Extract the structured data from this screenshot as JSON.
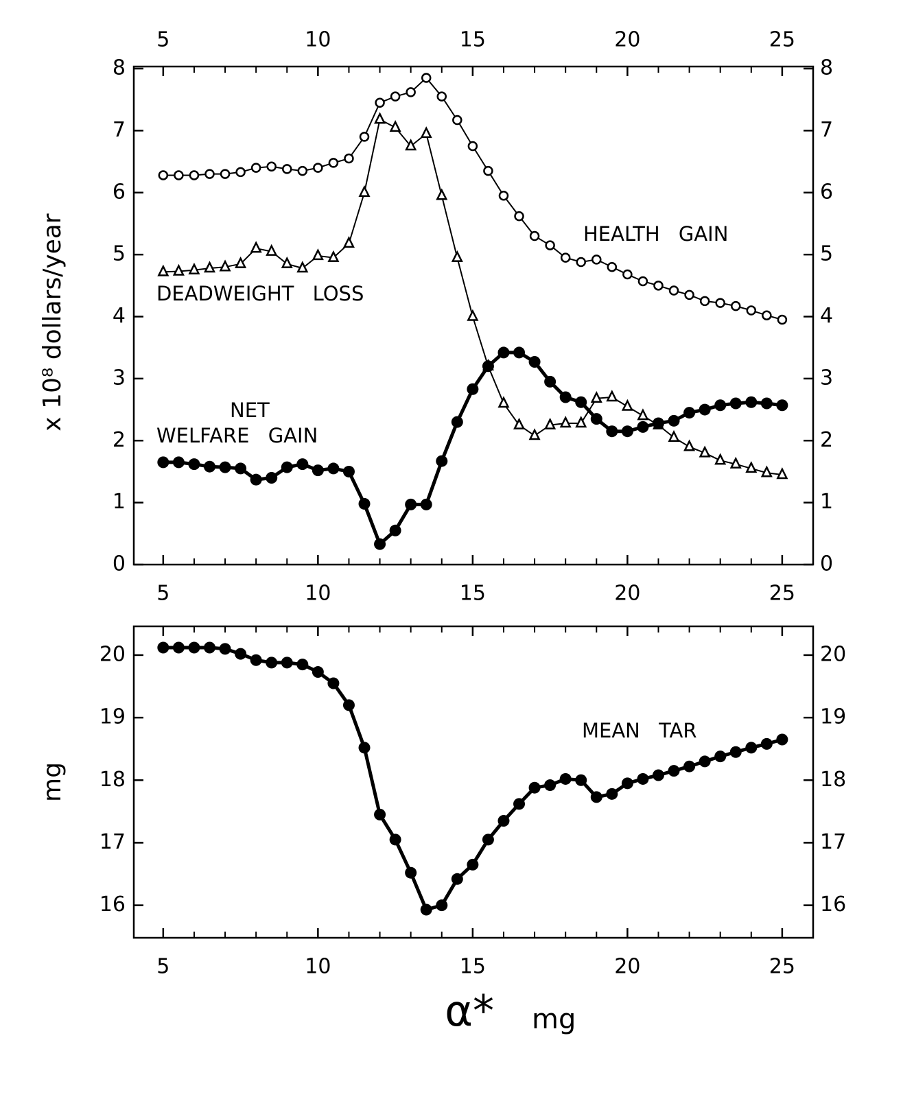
{
  "chart_data": [
    {
      "type": "line",
      "ylabel": "x 10⁸ dollars/year",
      "xlim": [
        4.05,
        26
      ],
      "xticks": [
        5,
        10,
        15,
        20,
        25
      ],
      "xminorticks": [
        6,
        7,
        8,
        9,
        11,
        12,
        13,
        14,
        16,
        17,
        18,
        19,
        21,
        22,
        23,
        24
      ],
      "xtick_labels": [
        "top",
        "bottom"
      ],
      "ylim": [
        0,
        8
      ],
      "yticks": [
        0,
        1,
        2,
        3,
        4,
        5,
        6,
        7,
        8
      ],
      "annotations": [
        "HEALTH GAIN",
        "DEADWEIGHT LOSS",
        "NET",
        "WELFARE GAIN"
      ],
      "x": [
        5,
        5.5,
        6,
        6.5,
        7,
        7.5,
        8,
        8.5,
        9,
        9.5,
        10,
        10.5,
        11,
        11.5,
        12,
        12.5,
        13,
        13.5,
        14,
        14.5,
        15,
        15.5,
        16,
        16.5,
        17,
        17.5,
        18,
        18.5,
        19,
        19.5,
        20,
        20.5,
        21,
        21.5,
        22,
        22.5,
        23,
        23.5,
        24,
        24.5,
        25
      ],
      "series": [
        {
          "name": "HEALTH GAIN",
          "color": "#000000",
          "marker": "circle-open",
          "linewidth": 2,
          "values": [
            6.28,
            6.28,
            6.28,
            6.3,
            6.3,
            6.33,
            6.4,
            6.42,
            6.38,
            6.35,
            6.4,
            6.48,
            6.55,
            6.9,
            7.45,
            7.55,
            7.62,
            7.85,
            7.55,
            7.17,
            6.75,
            6.35,
            5.95,
            5.62,
            5.3,
            5.15,
            4.95,
            4.88,
            4.92,
            4.8,
            4.68,
            4.57,
            4.5,
            4.42,
            4.35,
            4.25,
            4.22,
            4.17,
            4.1,
            4.02,
            3.95
          ]
        },
        {
          "name": "DEADWEIGHT LOSS",
          "color": "#000000",
          "marker": "triangle-open",
          "linewidth": 2,
          "values": [
            4.72,
            4.73,
            4.75,
            4.78,
            4.8,
            4.85,
            5.1,
            5.05,
            4.85,
            4.78,
            4.98,
            4.95,
            5.18,
            6.0,
            7.18,
            7.05,
            6.75,
            6.95,
            5.95,
            4.95,
            4.0,
            3.2,
            2.6,
            2.25,
            2.08,
            2.25,
            2.28,
            2.28,
            2.68,
            2.7,
            2.55,
            2.4,
            2.25,
            2.05,
            1.9,
            1.8,
            1.68,
            1.62,
            1.55,
            1.48,
            1.45
          ]
        },
        {
          "name": "NET WELFARE GAIN",
          "color": "#000000",
          "marker": "circle-filled",
          "linewidth": 5,
          "values": [
            1.65,
            1.65,
            1.62,
            1.58,
            1.57,
            1.55,
            1.37,
            1.4,
            1.57,
            1.62,
            1.52,
            1.55,
            1.5,
            0.98,
            0.33,
            0.55,
            0.97,
            0.97,
            1.67,
            2.3,
            2.83,
            3.2,
            3.42,
            3.42,
            3.27,
            2.95,
            2.7,
            2.62,
            2.35,
            2.15,
            2.15,
            2.22,
            2.28,
            2.32,
            2.45,
            2.5,
            2.57,
            2.6,
            2.62,
            2.6,
            2.57
          ]
        }
      ]
    },
    {
      "type": "line",
      "ylabel": "mg",
      "xlabel": "α*",
      "xlabel_unit": "mg",
      "xlim": [
        4.05,
        26
      ],
      "xticks": [
        5,
        10,
        15,
        20,
        25
      ],
      "xminorticks": [
        6,
        7,
        8,
        9,
        11,
        12,
        13,
        14,
        16,
        17,
        18,
        19,
        21,
        22,
        23,
        24
      ],
      "xtick_labels": [
        "bottom"
      ],
      "ylim": [
        15.48,
        20.46
      ],
      "yticks": [
        16,
        17,
        18,
        19,
        20
      ],
      "annotations": [
        "MEAN TAR"
      ],
      "x": [
        5,
        5.5,
        6,
        6.5,
        7,
        7.5,
        8,
        8.5,
        9,
        9.5,
        10,
        10.5,
        11,
        11.5,
        12,
        12.5,
        13,
        13.5,
        14,
        14.5,
        15,
        15.5,
        16,
        16.5,
        17,
        17.5,
        18,
        18.5,
        19,
        19.5,
        20,
        20.5,
        21,
        21.5,
        22,
        22.5,
        23,
        23.5,
        24,
        24.5,
        25
      ],
      "series": [
        {
          "name": "MEAN TAR",
          "color": "#000000",
          "marker": "circle-filled",
          "linewidth": 5,
          "values": [
            20.12,
            20.12,
            20.12,
            20.12,
            20.1,
            20.02,
            19.92,
            19.88,
            19.88,
            19.85,
            19.73,
            19.55,
            19.2,
            18.52,
            17.45,
            17.05,
            16.52,
            15.93,
            16.0,
            16.42,
            16.65,
            17.05,
            17.35,
            17.62,
            17.88,
            17.92,
            18.02,
            18.0,
            17.73,
            17.78,
            17.95,
            18.02,
            18.08,
            18.15,
            18.22,
            18.3,
            18.38,
            18.45,
            18.52,
            18.58,
            18.65
          ]
        }
      ]
    }
  ]
}
